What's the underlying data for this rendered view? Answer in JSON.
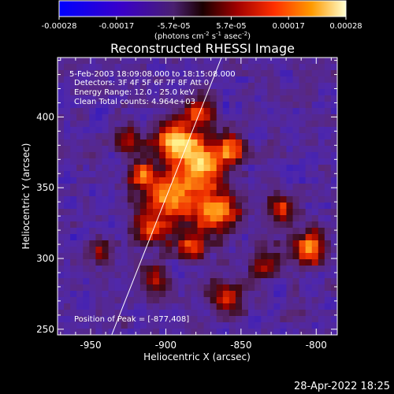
{
  "chart_data": {
    "type": "heatmap",
    "title": "Reconstructed RHESSI Image",
    "xlabel": "Heliocentric X (arcsec)",
    "ylabel": "Heliocentric Y (arcsec)",
    "xlim": [
      -972,
      -786
    ],
    "ylim": [
      246,
      442
    ],
    "xticks": [
      -950,
      -900,
      -850,
      -800
    ],
    "yticks": [
      250,
      300,
      350,
      400
    ],
    "colorbar": {
      "range": [
        -0.00028,
        0.00028
      ],
      "ticks": [
        "-0.00028",
        "-0.00017",
        "-5.7e-05",
        "5.7e-05",
        "0.00017",
        "0.00028"
      ],
      "unit_label": "(photons cm",
      "unit_sup1": "-2",
      "unit_mid": " s",
      "unit_sup2": "-1",
      "unit_mid2": " asec",
      "unit_sup3": "-2",
      "unit_end": ")"
    },
    "annotations": [
      "5-Feb-2003 18:09:08.000 to 18:15:08.000",
      "Detectors: 3F 4F 5F 6F 7F 8F  Att 0",
      "Energy Range: 12.0 - 25.0 keV",
      "Clean     Total counts: 4.964e+03"
    ],
    "peak_label": "Position of Peak = [-877,408]",
    "peak": [
      -877,
      408
    ],
    "limb_line": [
      [
        -936,
        246
      ],
      [
        -863,
        442
      ]
    ],
    "grid": false
  },
  "footer": {
    "timestamp": "28-Apr-2022 18:25"
  }
}
